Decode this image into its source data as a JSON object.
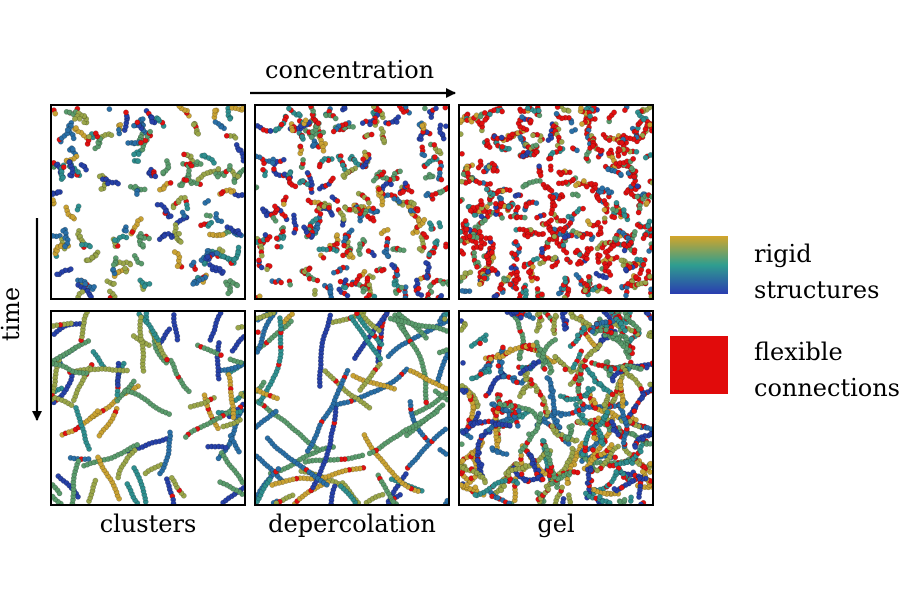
{
  "axes": {
    "concentration_label": "concentration",
    "time_label": "time"
  },
  "columns": [
    "clusters",
    "depercolation",
    "gel"
  ],
  "legend": {
    "rigid": {
      "line1": "rigid",
      "line2": "structures",
      "gradient": [
        "#d4a52a",
        "#2f9e8f",
        "#2a3db0"
      ]
    },
    "flexible": {
      "line1": "flexible",
      "line2": "connections",
      "color": "#e10b0b"
    }
  },
  "particle_colors": {
    "rigid": [
      "#c9a233",
      "#9aa64a",
      "#5a9b6c",
      "#2f8f8f",
      "#2a6fa6",
      "#2741a8"
    ],
    "flexible": "#e01010"
  },
  "panels": [
    {
      "row": "top",
      "column": "clusters",
      "flexible_fraction": 0.12,
      "structure": "clusters"
    },
    {
      "row": "top",
      "column": "depercolation",
      "flexible_fraction": 0.3,
      "structure": "clusters"
    },
    {
      "row": "top",
      "column": "gel",
      "flexible_fraction": 0.55,
      "structure": "dense"
    },
    {
      "row": "bottom",
      "column": "clusters",
      "flexible_fraction": 0.06,
      "structure": "chains"
    },
    {
      "row": "bottom",
      "column": "depercolation",
      "flexible_fraction": 0.05,
      "structure": "long-chains"
    },
    {
      "row": "bottom",
      "column": "gel",
      "flexible_fraction": 0.15,
      "structure": "network"
    }
  ]
}
